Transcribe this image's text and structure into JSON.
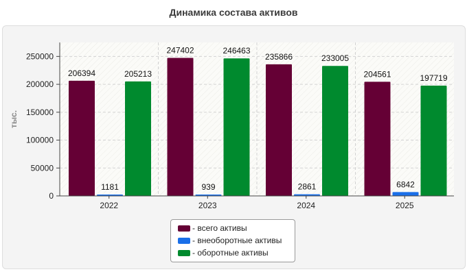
{
  "chart_data": {
    "type": "bar",
    "title": "Динамика состава активов",
    "ylabel": "тыс.",
    "xlabel": "",
    "categories": [
      "2022",
      "2023",
      "2024",
      "2025"
    ],
    "ylim": [
      0,
      275000
    ],
    "yticks": [
      0,
      50000,
      100000,
      150000,
      200000,
      250000
    ],
    "grid": true,
    "legend_position": "bottom",
    "series": [
      {
        "name": "- всего активы",
        "color": "#650035",
        "values": [
          206394,
          247402,
          235866,
          204561
        ]
      },
      {
        "name": "- внеоборотные активы",
        "color": "#1a6fe8",
        "values": [
          1181,
          939,
          2861,
          6842
        ]
      },
      {
        "name": "- оборотные активы",
        "color": "#008a2e",
        "values": [
          205213,
          246463,
          233005,
          197719
        ]
      }
    ]
  }
}
